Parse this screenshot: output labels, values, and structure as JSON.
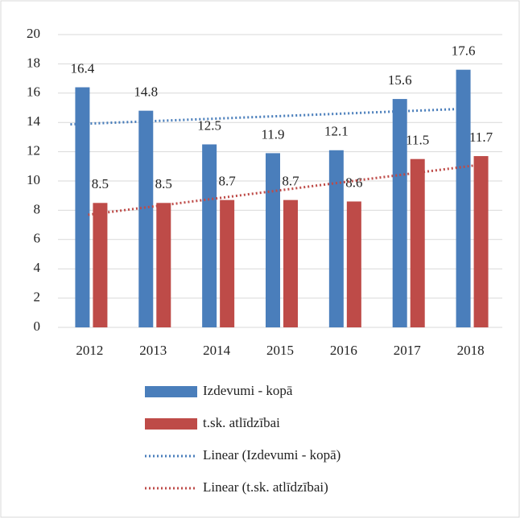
{
  "chart_data": {
    "type": "bar",
    "categories": [
      "2012",
      "2013",
      "2014",
      "2015",
      "2016",
      "2017",
      "2018"
    ],
    "series": [
      {
        "name": "Izdevumi - kopā",
        "color": "#4a7ebb",
        "values": [
          16.4,
          14.8,
          12.5,
          11.9,
          12.1,
          15.6,
          17.6
        ]
      },
      {
        "name": "t.sk. atlīdzībai",
        "color": "#be4b48",
        "values": [
          8.5,
          8.5,
          8.7,
          8.7,
          8.6,
          11.5,
          11.7
        ]
      }
    ],
    "trendlines": [
      {
        "name": "Linear (Izdevumi - kopā)",
        "series": 0,
        "color": "#4a7ebb"
      },
      {
        "name": "Linear (t.sk. atlīdzībai)",
        "series": 1,
        "color": "#be4b48"
      }
    ],
    "ylim": [
      0,
      20
    ],
    "yticks": [
      0,
      2,
      4,
      6,
      8,
      10,
      12,
      14,
      16,
      18,
      20
    ],
    "grid": true,
    "legend": "bottom"
  }
}
